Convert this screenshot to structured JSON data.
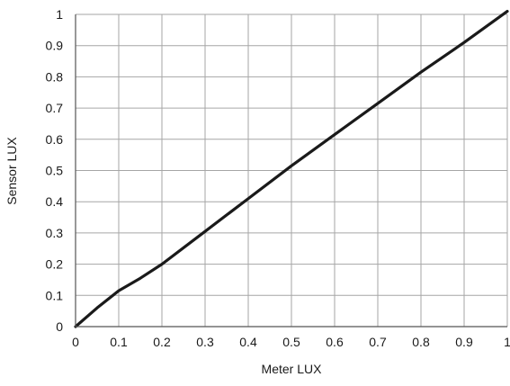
{
  "chart_data": {
    "type": "line",
    "title": "",
    "xlabel": "Meter LUX",
    "ylabel": "Sensor LUX",
    "xlim": [
      0,
      1
    ],
    "ylim": [
      0,
      1
    ],
    "x_ticks": [
      "0",
      "0.1",
      "0.2",
      "0.3",
      "0.4",
      "0.5",
      "0.6",
      "0.7",
      "0.8",
      "0.9",
      "1"
    ],
    "y_ticks": [
      "0",
      "0.1",
      "0.2",
      "0.3",
      "0.4",
      "0.5",
      "0.6",
      "0.7",
      "0.8",
      "0.9",
      "1"
    ],
    "grid": true,
    "legend": "none",
    "line_color": "#1a1a1a",
    "grid_color": "#a6a6a6",
    "series": [
      {
        "x": [
          0,
          0.05,
          0.1,
          0.15,
          0.2,
          0.3,
          0.4,
          0.5,
          0.6,
          0.7,
          0.8,
          0.9,
          1.0
        ],
        "y": [
          0,
          0.06,
          0.115,
          0.155,
          0.2,
          0.305,
          0.41,
          0.515,
          0.615,
          0.715,
          0.815,
          0.91,
          1.01
        ]
      }
    ]
  }
}
